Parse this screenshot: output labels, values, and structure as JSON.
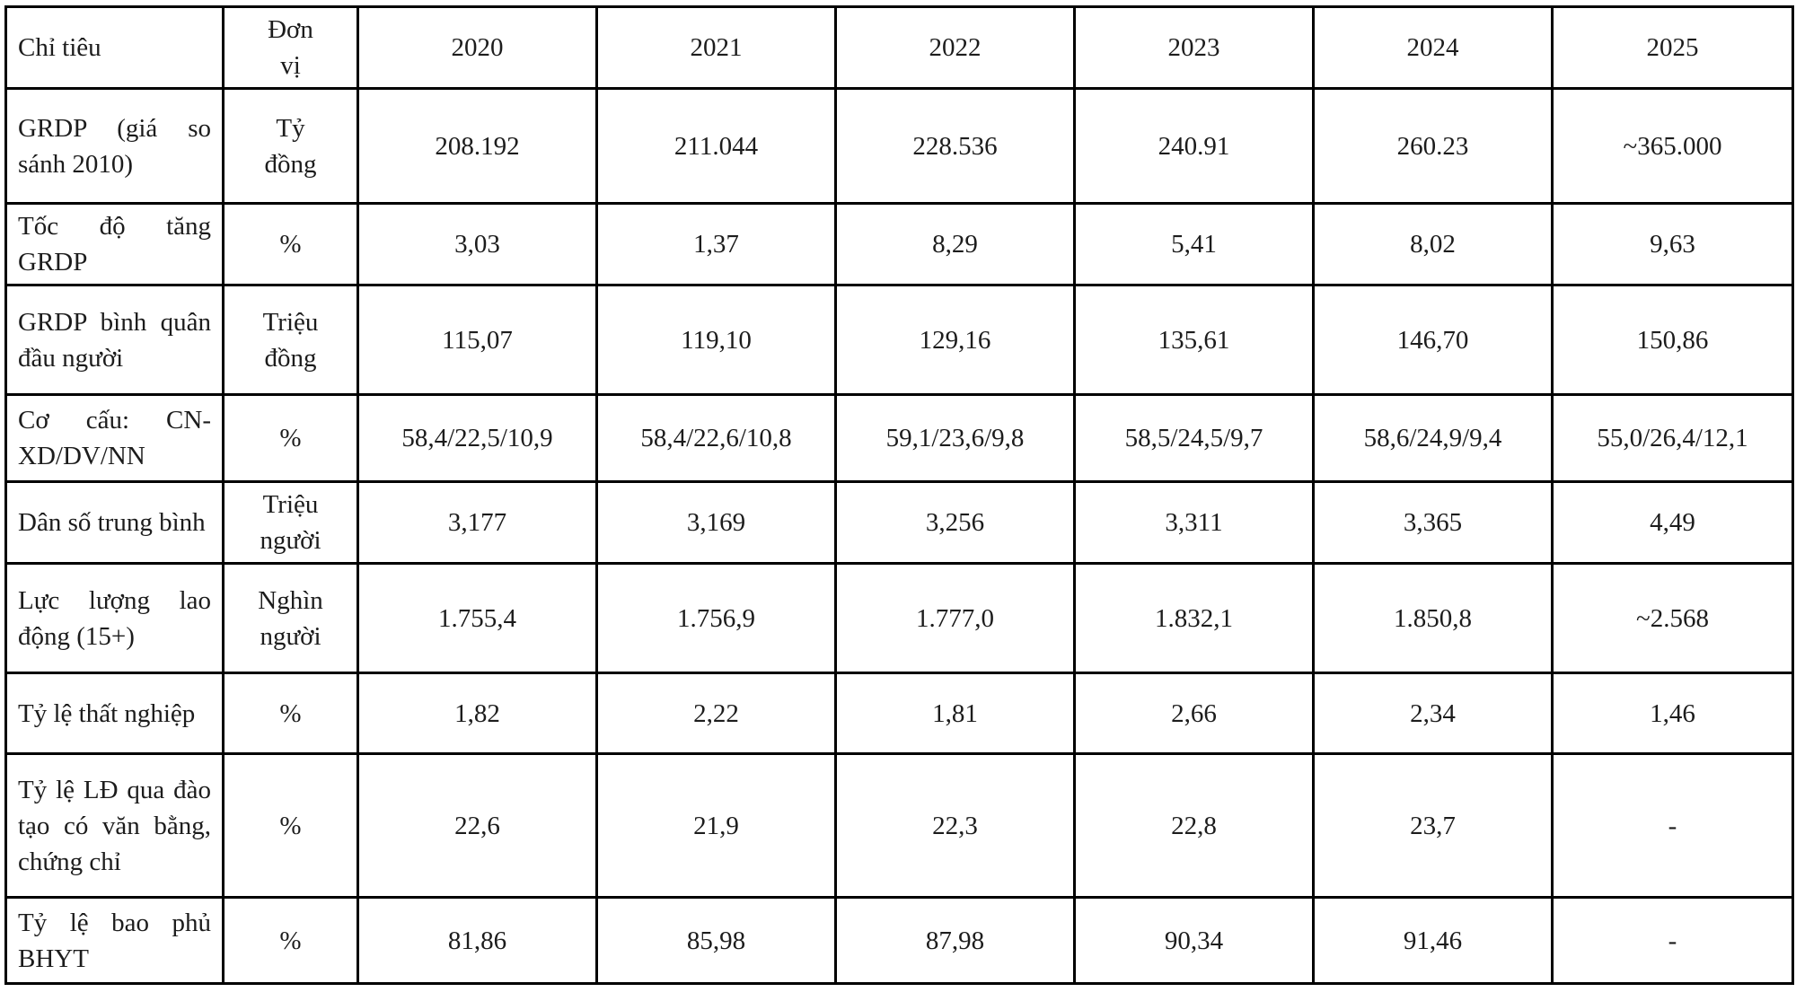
{
  "table": {
    "header": {
      "indicator": "Chỉ tiêu",
      "unit": "Đơn\nvị",
      "years": [
        "2020",
        "2021",
        "2022",
        "2023",
        "2024",
        "2025"
      ]
    },
    "rows": [
      {
        "label": "GRDP (giá so sánh 2010)",
        "unit": "Tỷ\nđồng",
        "values": [
          "208.192",
          "211.044",
          "228.536",
          "240.91",
          "260.23",
          "~365.000"
        ]
      },
      {
        "label": "Tốc độ tăng GRDP",
        "unit": "%",
        "values": [
          "3,03",
          "1,37",
          "8,29",
          "5,41",
          "8,02",
          "9,63"
        ]
      },
      {
        "label": "GRDP bình quân đầu người",
        "unit": "Triệu\nđồng",
        "values": [
          "115,07",
          "119,10",
          "129,16",
          "135,61",
          "146,70",
          "150,86"
        ]
      },
      {
        "label": "Cơ cấu: CN-XD/DV/NN",
        "unit": "%",
        "values": [
          "58,4/22,5/10,9",
          "58,4/22,6/10,8",
          "59,1/23,6/9,8",
          "58,5/24,5/9,7",
          "58,6/24,9/9,4",
          "55,0/26,4/12,1"
        ]
      },
      {
        "label": "Dân số trung bình",
        "unit": "Triệu\nngười",
        "values": [
          "3,177",
          "3,169",
          "3,256",
          "3,311",
          "3,365",
          "4,49"
        ]
      },
      {
        "label": "Lực lượng lao động (15+)",
        "unit": "Nghìn\nngười",
        "values": [
          "1.755,4",
          "1.756,9",
          "1.777,0",
          "1.832,1",
          "1.850,8",
          "~2.568"
        ]
      },
      {
        "label": "Tỷ lệ thất nghiệp",
        "unit": "%",
        "values": [
          "1,82",
          "2,22",
          "1,81",
          "2,66",
          "2,34",
          "1,46"
        ]
      },
      {
        "label": "Tỷ lệ LĐ qua đào tạo có văn bằng, chứng chỉ",
        "unit": "%",
        "values": [
          "22,6",
          "21,9",
          "22,3",
          "22,8",
          "23,7",
          "-"
        ]
      },
      {
        "label": "Tỷ lệ bao phủ BHYT",
        "unit": "%",
        "values": [
          "81,86",
          "85,98",
          "87,98",
          "90,34",
          "91,46",
          "-"
        ]
      }
    ]
  }
}
